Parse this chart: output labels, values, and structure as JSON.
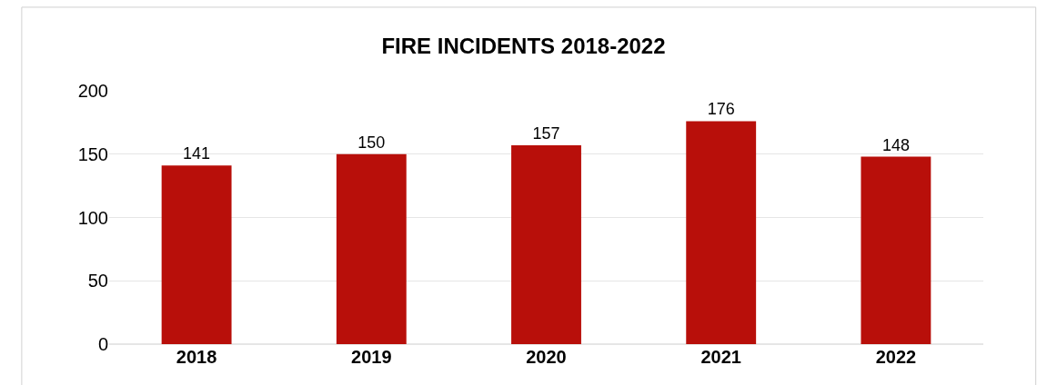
{
  "chart_data": {
    "type": "bar",
    "title": "FIRE INCIDENTS 2018-2022",
    "categories": [
      "2018",
      "2019",
      "2020",
      "2021",
      "2022"
    ],
    "values": [
      141,
      150,
      157,
      176,
      148
    ],
    "color": "#b80f0a",
    "ylim": [
      0,
      200
    ],
    "yticks": [
      0,
      50,
      100,
      150,
      200
    ],
    "grid": "y",
    "data_labels": true
  }
}
